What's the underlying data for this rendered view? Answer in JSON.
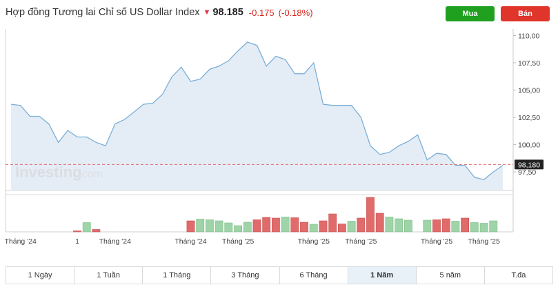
{
  "header": {
    "title": "Hợp đồng Tương lai Chỉ số US Dollar Index",
    "price": "98.185",
    "change": "-0.175",
    "change_pct": "(-0.18%)"
  },
  "buttons": {
    "buy": "Mua",
    "sell": "Bán"
  },
  "watermark": {
    "brand": "Investing",
    "suffix": ".com"
  },
  "current_price_label": "98,180",
  "chart_data": {
    "type": "area",
    "title": "",
    "y_tick_labels": [
      "110,00",
      "107,50",
      "105,00",
      "102,50",
      "100,00",
      "97,50"
    ],
    "y_ticks": [
      110,
      107.5,
      105,
      102.5,
      100,
      97.5
    ],
    "ylim": [
      95.8,
      110.6
    ],
    "reference_line": 98.18,
    "x_labels": [
      "Tháng '24",
      "1",
      "Tháng '24",
      "Tháng '24",
      "Tháng '25",
      "Tháng '25",
      "Tháng '25",
      "Tháng '25",
      "Tháng '25"
    ],
    "x_label_index": [
      1,
      7,
      11,
      19,
      24,
      32,
      37,
      45,
      50
    ],
    "price": [
      103.7,
      103.6,
      102.6,
      102.6,
      101.9,
      100.2,
      101.3,
      100.7,
      100.7,
      100.2,
      99.9,
      101.9,
      102.3,
      103.0,
      103.7,
      103.8,
      104.6,
      106.2,
      107.1,
      105.8,
      106.0,
      106.9,
      107.2,
      107.7,
      108.6,
      109.4,
      109.1,
      107.2,
      108.1,
      107.8,
      106.5,
      106.5,
      107.5,
      103.7,
      103.6,
      103.6,
      103.6,
      102.5,
      99.9,
      99.1,
      99.3,
      99.9,
      100.3,
      100.9,
      98.6,
      99.2,
      99.1,
      98.1,
      98.1,
      97.0,
      96.8,
      97.5,
      98.1
    ],
    "volume": {
      "series_index": [
        7,
        8,
        9,
        19,
        20,
        21,
        22,
        23,
        24,
        25,
        26,
        27,
        28,
        29,
        30,
        31,
        32,
        33,
        34,
        35,
        36,
        37,
        38,
        39,
        40,
        41,
        42,
        44,
        45,
        46,
        47,
        48,
        49,
        50,
        51
      ],
      "values": [
        0.03,
        0.27,
        0.07,
        0.32,
        0.37,
        0.35,
        0.32,
        0.26,
        0.18,
        0.28,
        0.35,
        0.42,
        0.4,
        0.43,
        0.41,
        0.28,
        0.22,
        0.32,
        0.52,
        0.23,
        0.31,
        0.4,
        1.0,
        0.54,
        0.43,
        0.38,
        0.34,
        0.34,
        0.35,
        0.38,
        0.31,
        0.4,
        0.27,
        0.25,
        0.32
      ],
      "direction": [
        "down",
        "up",
        "down",
        "down",
        "up",
        "up",
        "up",
        "up",
        "up",
        "up",
        "down",
        "down",
        "down",
        "up",
        "down",
        "down",
        "up",
        "down",
        "down",
        "down",
        "up",
        "down",
        "down",
        "down",
        "up",
        "up",
        "up",
        "up",
        "down",
        "down",
        "up",
        "down",
        "up",
        "up",
        "up"
      ]
    },
    "colors": {
      "line": "#7aaed6",
      "fill": "#e4edf6",
      "up": "#9fd3a8",
      "down": "#e06b6b",
      "reference": "#e06b6b"
    }
  },
  "tabs": [
    {
      "label": "1 Ngày",
      "active": false
    },
    {
      "label": "1 Tuần",
      "active": false
    },
    {
      "label": "1 Tháng",
      "active": false
    },
    {
      "label": "3 Tháng",
      "active": false
    },
    {
      "label": "6 Tháng",
      "active": false
    },
    {
      "label": "1 Năm",
      "active": true
    },
    {
      "label": "5 năm",
      "active": false
    },
    {
      "label": "T.đa",
      "active": false
    }
  ]
}
